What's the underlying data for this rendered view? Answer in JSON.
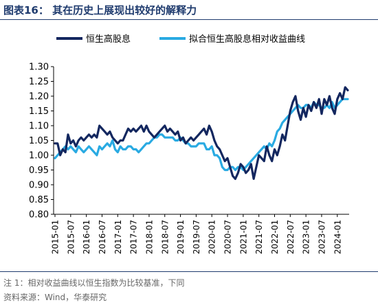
{
  "title": "图表16：  其在历史上展现出较好的解释力",
  "note": "注 1：相对收益曲线以恒生指数为比较基准，下同",
  "source": "资料来源：Wind，华泰研究",
  "colors": {
    "dark": "#13275f",
    "light": "#29aae2",
    "accent": "#1f3b6e",
    "axis": "#000000"
  },
  "chart_data": {
    "type": "line",
    "ylim": [
      0.8,
      1.3
    ],
    "yticks": [
      "0.80",
      "0.85",
      "0.90",
      "0.95",
      "1.00",
      "1.05",
      "1.10",
      "1.15",
      "1.20",
      "1.25",
      "1.30"
    ],
    "xticks": [
      "2015-01",
      "2015-07",
      "2016-01",
      "2016-07",
      "2017-01",
      "2017-07",
      "2018-01",
      "2018-07",
      "2019-01",
      "2019-07",
      "2020-01",
      "2020-07",
      "2021-01",
      "2021-07",
      "2022-01",
      "2022-07",
      "2023-01",
      "2023-07",
      "2024-01"
    ],
    "x_start": "2015-01",
    "series": [
      {
        "name": "恒生高股息",
        "values": [
          1.04,
          1.04,
          1.0,
          1.02,
          1.01,
          1.07,
          1.04,
          1.05,
          1.03,
          1.05,
          1.06,
          1.05,
          1.06,
          1.07,
          1.06,
          1.07,
          1.06,
          1.1,
          1.09,
          1.08,
          1.07,
          1.08,
          1.06,
          1.05,
          1.04,
          1.05,
          1.05,
          1.07,
          1.09,
          1.08,
          1.09,
          1.08,
          1.09,
          1.1,
          1.08,
          1.1,
          1.08,
          1.07,
          1.06,
          1.07,
          1.08,
          1.09,
          1.1,
          1.08,
          1.09,
          1.08,
          1.07,
          1.08,
          1.05,
          1.06,
          1.04,
          1.05,
          1.06,
          1.05,
          1.06,
          1.07,
          1.08,
          1.09,
          1.07,
          1.1,
          1.08,
          1.05,
          1.03,
          1.02,
          1.0,
          0.98,
          0.99,
          0.96,
          0.93,
          0.92,
          0.94,
          0.97,
          0.96,
          0.94,
          0.95,
          0.97,
          0.92,
          0.96,
          1.0,
          0.99,
          0.98,
          1.03,
          1.0,
          0.98,
          1.02,
          1.0,
          1.03,
          1.07,
          1.05,
          1.1,
          1.15,
          1.18,
          1.2,
          1.15,
          1.12,
          1.16,
          1.13,
          1.17,
          1.15,
          1.18,
          1.16,
          1.19,
          1.14,
          1.19,
          1.17,
          1.2,
          1.16,
          1.14,
          1.19,
          1.21,
          1.19,
          1.23,
          1.22
        ]
      },
      {
        "name": "拟合恒生高股息相对收益曲线",
        "values": [
          0.99,
          1.0,
          1.01,
          1.02,
          1.03,
          1.02,
          1.03,
          1.02,
          1.01,
          1.03,
          1.02,
          1.01,
          1.02,
          1.03,
          1.02,
          1.01,
          1.0,
          1.03,
          1.02,
          1.03,
          1.04,
          1.03,
          1.05,
          1.02,
          1.01,
          1.03,
          1.02,
          1.02,
          1.03,
          1.03,
          1.02,
          1.02,
          1.01,
          1.02,
          1.03,
          1.04,
          1.04,
          1.05,
          1.06,
          1.06,
          1.07,
          1.07,
          1.06,
          1.06,
          1.06,
          1.06,
          1.05,
          1.05,
          1.06,
          1.05,
          1.04,
          1.04,
          1.03,
          1.03,
          1.03,
          1.04,
          1.04,
          1.04,
          1.02,
          1.02,
          1.03,
          1.0,
          1.0,
          0.99,
          0.96,
          0.95,
          0.95,
          0.96,
          0.96,
          0.95,
          0.96,
          0.96,
          0.95,
          0.96,
          0.97,
          0.98,
          0.99,
          1.0,
          1.01,
          1.02,
          1.03,
          1.02,
          1.04,
          1.03,
          1.05,
          1.08,
          1.09,
          1.11,
          1.12,
          1.13,
          1.14,
          1.15,
          1.16,
          1.17,
          1.16,
          1.16,
          1.17,
          1.17,
          1.16,
          1.18,
          1.17,
          1.17,
          1.16,
          1.16,
          1.17,
          1.16,
          1.18,
          1.16,
          1.17,
          1.18,
          1.19,
          1.19,
          1.19
        ]
      }
    ]
  }
}
